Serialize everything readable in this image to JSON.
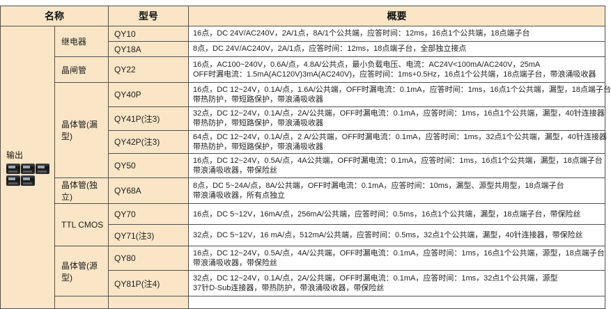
{
  "table": {
    "headers": {
      "name": "名称",
      "model": "型号",
      "summary": "概要"
    },
    "group_label": "输出",
    "output_icons": [
      "module-photo-icon",
      "module-photo-icon",
      "module-photo-icon",
      "module-photo-icon",
      "module-photo-icon"
    ],
    "colors": {
      "table_bg": "#FAE6C7",
      "row_bg": "#FFFFFF",
      "border": "#4F4F4F",
      "text": "#1C1C1C"
    },
    "categories": [
      {
        "label": "继电器",
        "rows": [
          {
            "model": "QY10",
            "summary_lines": [
              "16点，DC 24V/AC240V，2A/1点，8A/1个公共端，应答时间：12ms，16点1个公共端，18点端子台"
            ]
          },
          {
            "model": "QY18A",
            "summary_lines": [
              "8点，DC 24V/AC240V，2A/1点，应答时间：12ms，18点端子台，全部独立接点"
            ]
          }
        ]
      },
      {
        "label": "晶闸管",
        "rows": [
          {
            "model": "QY22",
            "summary_lines": [
              "16点，AC100~240V，0.6A/点，4.8A/公共点，最小负载电压、电流：AC24V<100mA/AC240V，25mA",
              "OFF时漏电流：1.5mA(AC120V)3mA(AC240V)，应答时间：1ms+0.5Hz，16点1个公共端，18点端子台，带浪涌吸收器"
            ]
          }
        ]
      },
      {
        "label": "晶体管(漏型)",
        "rows": [
          {
            "model": "QY40P",
            "summary_lines": [
              "16点，DC 12~24V，0.1A/点，1.6A/公共端，OFF时漏电流：0.1mA，应答时间：1ms，16点1个公共端，漏型，18点端子台",
              "带热防护，带短路保护，带浪涌吸收器"
            ]
          },
          {
            "model": "QY41P(注3)",
            "summary_lines": [
              "32点，DC 12~24V，0.1A/点，2A/公共端，OFF时漏电流：0.1mA，应答时间：1ms，16点1个公共端，漏型，40针连接器",
              "带热防护，带短路保护，带浪涌吸收器"
            ]
          },
          {
            "model": "QY42P(注3)",
            "summary_lines": [
              "64点，DC 12~24V，0.1A/点，2 A/公共端，OFF时漏电流：0.1mA，应答时间：1ms，32点1个公共端，漏型，40针连接器",
              "带热防护，带短路保护，带浪涌吸收器"
            ]
          },
          {
            "model": "QY50",
            "summary_lines": [
              "16点，DC 12~24V，0.5A/点，4A公共端，OFF时漏电流：0.1mA，应答时间：1ms，16点1个公共端，漏型，18点端子台",
              "带浪涌吸收器，带保险丝"
            ]
          }
        ]
      },
      {
        "label": "晶体管(独立)",
        "rows": [
          {
            "model": "QY68A",
            "summary_lines": [
              "8点，DC 5~24A/点，8A/公共端，OFF时漏电流：0.1mA，应答时间：10ms，漏型、源型共用型，18点端子台",
              "带浪涌吸收器，所有点独立"
            ]
          }
        ]
      },
      {
        "label": "TTL CMOS",
        "rows": [
          {
            "model": "QY70",
            "summary_lines": [
              "16点，DC 5~12V，16mA/点，256mA/公共端，应答时间：0.5ms，16点1个公共端，漏型，18点端子台，带保险丝"
            ]
          },
          {
            "model": "QY71(注3)",
            "summary_lines": [
              "32点，DC 5~12V，16 mA/点，512mA/公共端，应答时间：0.5ms，32点1个公共端，漏型，40针连接器，带保险丝"
            ]
          }
        ]
      },
      {
        "label": "晶体管(源型)",
        "rows": [
          {
            "model": "QY80",
            "summary_lines": [
              "16点，DC 12~24V，0.5A/点，4A/公共端，OFF时漏电流：0.1mA，应答时间：1ms，16点1个公共端，源型，18点端子台",
              "带浪涌吸收器，带保险丝"
            ]
          },
          {
            "model": "QY81P(注4)",
            "summary_lines": [
              "32点，DC 12~24V，0.1A/点，2A/公共端，OFF时漏电流：0.1mA，应答时间：1ms，32点1个公共端，源型",
              "37针D-Sub连接器，带热防护，带浪涌吸收器，带保险丝"
            ]
          }
        ]
      }
    ]
  }
}
